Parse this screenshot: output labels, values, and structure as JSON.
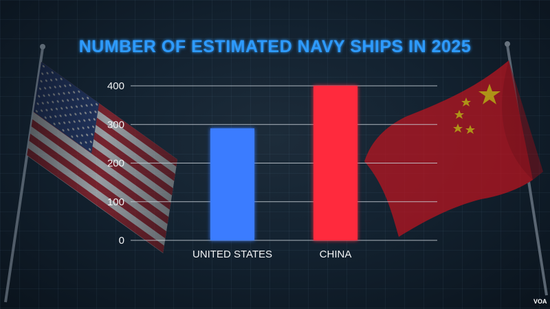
{
  "chart_data": {
    "type": "bar",
    "title": "NUMBER OF ESTIMATED NAVY SHIPS IN 2025",
    "categories": [
      "UNITED STATES",
      "CHINA"
    ],
    "values": [
      290,
      400
    ],
    "ylim": [
      0,
      400
    ],
    "yticks": [
      0,
      100,
      200,
      300,
      400
    ],
    "grid": true,
    "bar_colors": [
      "#3a7cff",
      "#ff2b3d"
    ],
    "title_color": "#2f9bff",
    "xlabel": "",
    "ylabel": ""
  },
  "credit": "VOA",
  "decor": {
    "left": "us-flag",
    "right": "china-flag"
  }
}
